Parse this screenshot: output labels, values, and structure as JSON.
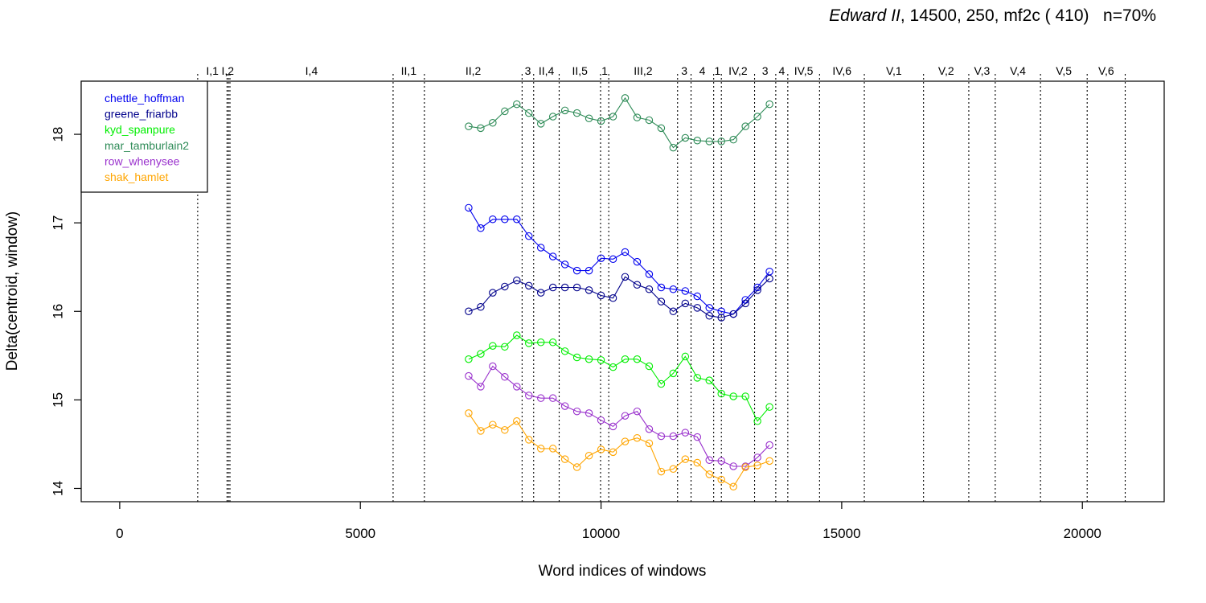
{
  "chart_data": {
    "type": "line",
    "title": "Edward II",
    "subtitle": ", 14500, 250, mf2c ( 410)   n=70%",
    "xlabel": "Word indices of windows",
    "ylabel": "Delta(centroid, window)",
    "xlim": [
      -800,
      21700
    ],
    "ylim": [
      13.85,
      18.6
    ],
    "x_ticks": [
      0,
      5000,
      10000,
      15000,
      20000
    ],
    "y_ticks": [
      14,
      15,
      16,
      17,
      18
    ],
    "grid": false,
    "legend_position": "top-left",
    "act_scene_markers": [
      {
        "label": "I,1",
        "x": 1620
      },
      {
        "label": "I,2",
        "x": 2230
      },
      {
        "label": "",
        "x": 2260
      },
      {
        "label": "I,4",
        "x": 2290
      },
      {
        "label": "II,1",
        "x": 5680
      },
      {
        "label": "II,2",
        "x": 6330
      },
      {
        "label": "3",
        "x": 8360
      },
      {
        "label": "II,4",
        "x": 8600
      },
      {
        "label": "II,5",
        "x": 9130
      },
      {
        "label": "1",
        "x": 9990
      },
      {
        "label": "III,2",
        "x": 10160
      },
      {
        "label": "3",
        "x": 11590
      },
      {
        "label": "4",
        "x": 11870
      },
      {
        "label": "1",
        "x": 12340
      },
      {
        "label": "IV,2",
        "x": 12500
      },
      {
        "label": "3",
        "x": 13190
      },
      {
        "label": "4",
        "x": 13630
      },
      {
        "label": "IV,5",
        "x": 13880
      },
      {
        "label": "IV,6",
        "x": 14540
      },
      {
        "label": "V,1",
        "x": 15470
      },
      {
        "label": "V,2",
        "x": 16700
      },
      {
        "label": "V,3",
        "x": 17640
      },
      {
        "label": "V,4",
        "x": 18190
      },
      {
        "label": "V,5",
        "x": 19130
      },
      {
        "label": "V,6",
        "x": 20100
      },
      {
        "label": "",
        "x": 20890
      }
    ],
    "x": [
      7250,
      7500,
      7750,
      8000,
      8250,
      8500,
      8750,
      9000,
      9250,
      9500,
      9750,
      10000,
      10250,
      10500,
      10750,
      11000,
      11250,
      11500,
      11750,
      12000,
      12250,
      12500,
      12750,
      13000,
      13250,
      13500
    ],
    "series": [
      {
        "name": "chettle_hoffman",
        "color": "#0000ee",
        "values": [
          17.17,
          16.94,
          17.04,
          17.04,
          17.04,
          16.85,
          16.72,
          16.62,
          16.53,
          16.46,
          16.46,
          16.6,
          16.59,
          16.67,
          16.56,
          16.42,
          16.27,
          16.25,
          16.23,
          16.17,
          16.04,
          16.0,
          15.97,
          16.13,
          16.27,
          16.45
        ]
      },
      {
        "name": "greene_friarbb",
        "color": "#00008b",
        "values": [
          16.0,
          16.05,
          16.21,
          16.28,
          16.35,
          16.29,
          16.21,
          16.27,
          16.27,
          16.27,
          16.24,
          16.18,
          16.15,
          16.39,
          16.3,
          16.25,
          16.11,
          16.0,
          16.09,
          16.04,
          15.95,
          15.93,
          15.97,
          16.09,
          16.24,
          16.37
        ]
      },
      {
        "name": "kyd_spanpure",
        "color": "#00ee00",
        "values": [
          15.46,
          15.52,
          15.61,
          15.6,
          15.73,
          15.64,
          15.65,
          15.65,
          15.55,
          15.48,
          15.46,
          15.45,
          15.37,
          15.46,
          15.46,
          15.38,
          15.18,
          15.3,
          15.49,
          15.25,
          15.22,
          15.07,
          15.04,
          15.04,
          14.76,
          14.92
        ]
      },
      {
        "name": "mar_tamburlain2",
        "color": "#2e8b57",
        "values": [
          18.09,
          18.07,
          18.13,
          18.26,
          18.34,
          18.24,
          18.12,
          18.2,
          18.27,
          18.24,
          18.18,
          18.15,
          18.2,
          18.41,
          18.19,
          18.16,
          18.07,
          17.85,
          17.96,
          17.93,
          17.92,
          17.92,
          17.94,
          18.09,
          18.2,
          18.34
        ]
      },
      {
        "name": "row_whenysee",
        "color": "#9a32cd",
        "values": [
          15.27,
          15.15,
          15.38,
          15.26,
          15.15,
          15.05,
          15.02,
          15.02,
          14.93,
          14.87,
          14.85,
          14.77,
          14.7,
          14.82,
          14.87,
          14.67,
          14.59,
          14.59,
          14.63,
          14.58,
          14.32,
          14.31,
          14.25,
          14.25,
          14.35,
          14.49
        ]
      },
      {
        "name": "shak_hamlet",
        "color": "#ffa500",
        "values": [
          14.85,
          14.65,
          14.72,
          14.66,
          14.76,
          14.55,
          14.45,
          14.45,
          14.33,
          14.24,
          14.37,
          14.44,
          14.41,
          14.53,
          14.57,
          14.51,
          14.19,
          14.22,
          14.33,
          14.29,
          14.16,
          14.1,
          14.02,
          14.24,
          14.26,
          14.31
        ]
      }
    ]
  }
}
